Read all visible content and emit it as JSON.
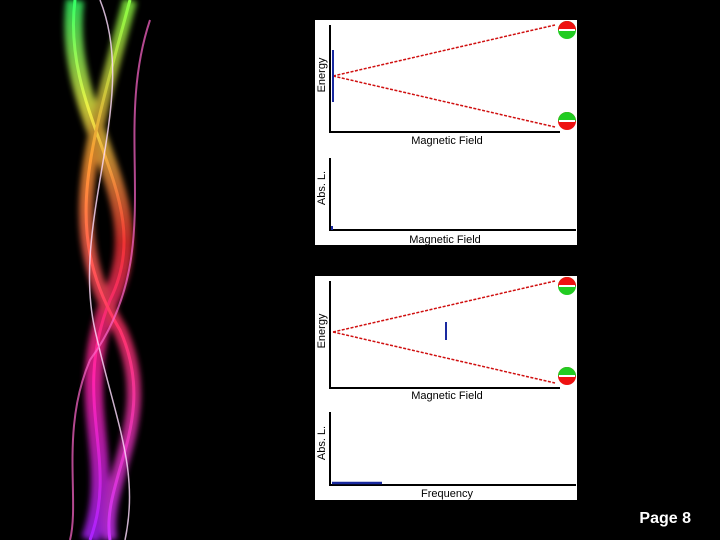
{
  "panels": [
    {
      "energy_plot": {
        "y_label": "Energy",
        "x_label": "Magnetic Field"
      },
      "absorption_plot": {
        "y_label": "Abs. L.",
        "x_label": "Magnetic Field"
      }
    },
    {
      "energy_plot": {
        "y_label": "Energy",
        "x_label": "Magnetic Field"
      },
      "absorption_plot": {
        "y_label": "Abs. L.",
        "x_label": "Frequency"
      }
    }
  ],
  "footer": {
    "page": "Page 8"
  }
}
